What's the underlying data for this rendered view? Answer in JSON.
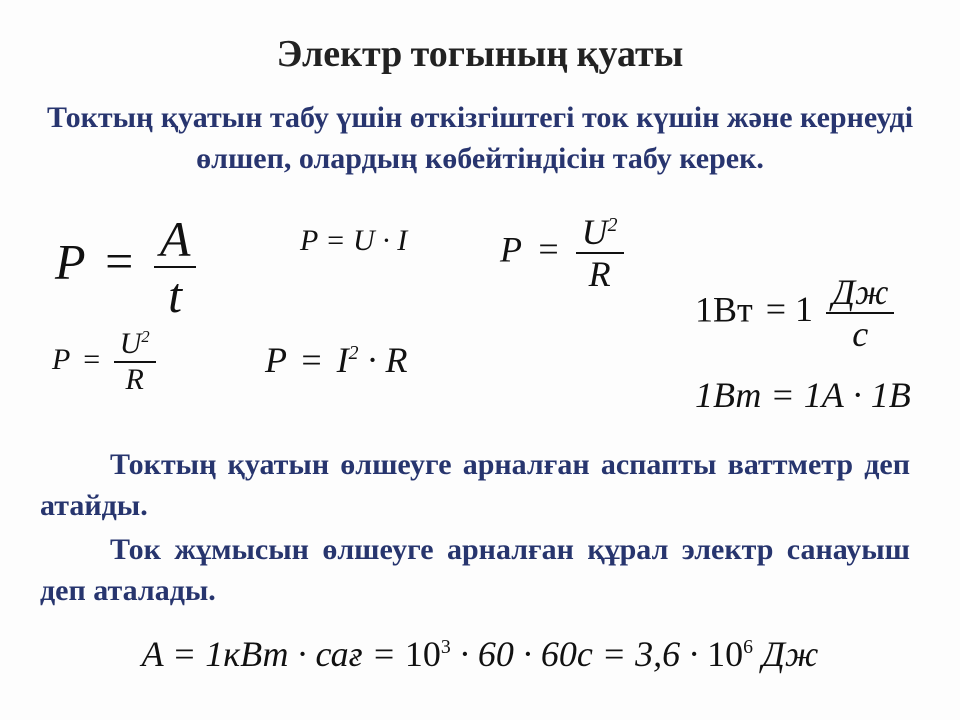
{
  "title": "Электр тогының қуаты",
  "intro": "Токтың қуатын табу үшін өткізгіштегі ток күшін және кернеуді өлшеп, олардың көбейтіндісін табу керек.",
  "formulas": {
    "f1": {
      "left": "P",
      "eq": "=",
      "num": "A",
      "den": "t"
    },
    "f2": {
      "text": "P = U · I"
    },
    "f3": {
      "left": "P",
      "eq": "=",
      "num_base": "U",
      "num_exp": "2",
      "den": "R"
    },
    "f4": {
      "left": "P",
      "eq": "=",
      "num_base": "U",
      "num_exp": "2",
      "den": "R"
    },
    "f5": {
      "left": "P",
      "eq": "=",
      "base": "I",
      "exp": "2",
      "tail": " · R"
    },
    "f6": {
      "left": "1Вт",
      "eq": "= 1",
      "num": "Дж",
      "den": "с"
    },
    "f7": {
      "text": "1Вт = 1А · 1В"
    }
  },
  "para1": "Токтың қуатын өлшеуге арналған аспапты ваттметр деп атайды.",
  "para2": "Ток жұмысын өлшеуге арналған құрал электр санауыш деп аталады.",
  "bottom": {
    "a": "A",
    "eq1": "= 1кВт · сағ =",
    "ten1": "10",
    "exp1": "3",
    "mid": " · 60 · 60с = 3,6 · ",
    "ten2": "10",
    "exp2": "6",
    "unit": " Дж"
  },
  "style": {
    "title_color": "#222",
    "accent_color": "#28356f",
    "formula_color": "#111",
    "background": "#fdfdfd",
    "title_fontsize": 38,
    "intro_fontsize": 30,
    "formula_big": 50,
    "formula_med": 36,
    "formula_sm": 30,
    "body_fontsize": 30,
    "bottom_fontsize": 36
  }
}
